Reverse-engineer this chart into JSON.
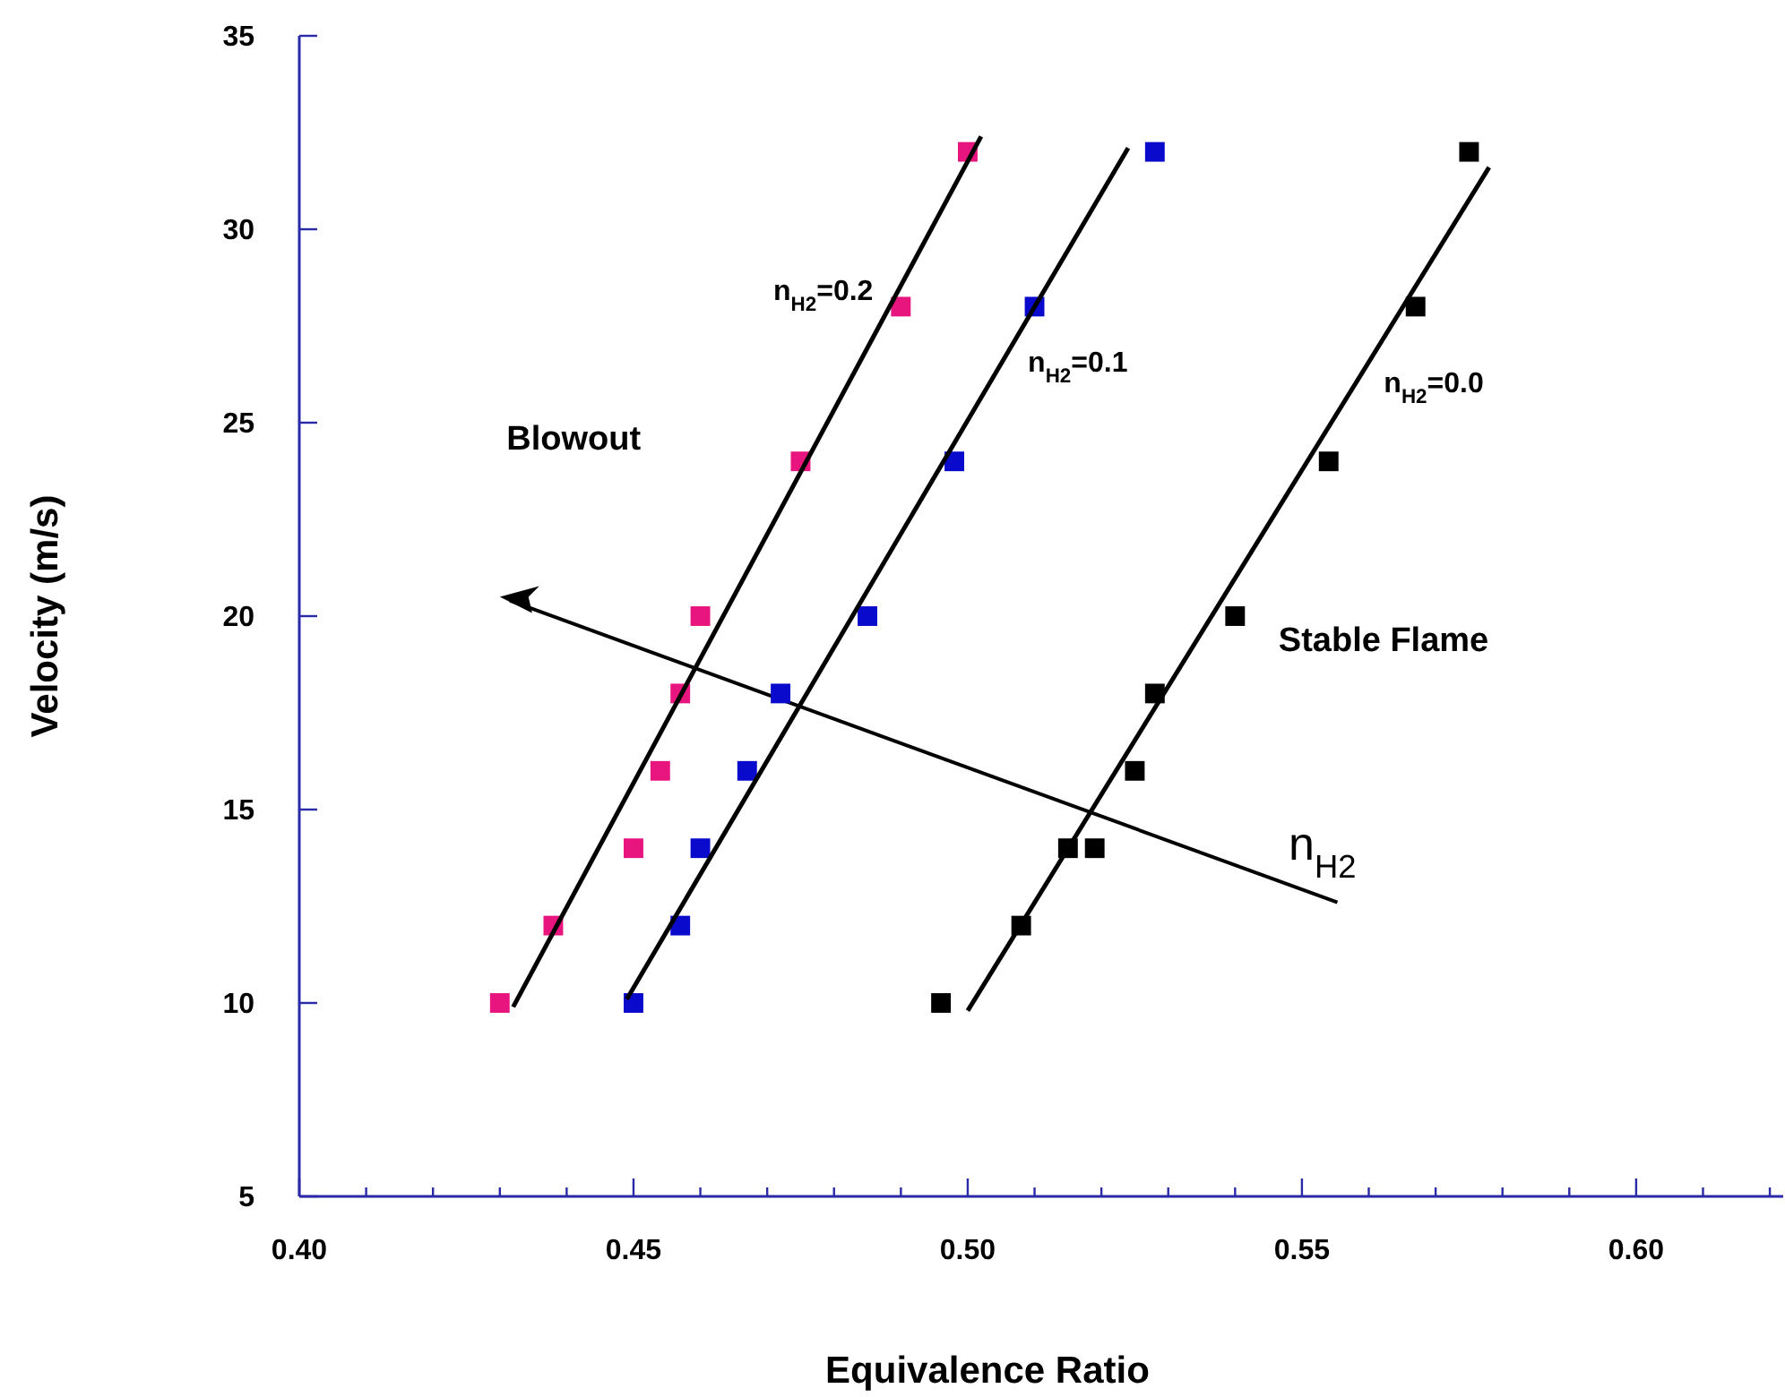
{
  "chart_data": {
    "type": "scatter",
    "xlabel": "Equivalence Ratio",
    "ylabel": "Velocity (m/s)",
    "xlim": [
      0.4,
      0.622
    ],
    "ylim": [
      5,
      35
    ],
    "xticks": [
      {
        "value": 0.4,
        "label": "0.40"
      },
      {
        "value": 0.41,
        "label": null
      },
      {
        "value": 0.42,
        "label": null
      },
      {
        "value": 0.43,
        "label": null
      },
      {
        "value": 0.44,
        "label": null
      },
      {
        "value": 0.45,
        "label": "0.45"
      },
      {
        "value": 0.46,
        "label": null
      },
      {
        "value": 0.47,
        "label": null
      },
      {
        "value": 0.48,
        "label": null
      },
      {
        "value": 0.49,
        "label": null
      },
      {
        "value": 0.5,
        "label": "0.50"
      },
      {
        "value": 0.51,
        "label": null
      },
      {
        "value": 0.52,
        "label": null
      },
      {
        "value": 0.53,
        "label": null
      },
      {
        "value": 0.54,
        "label": null
      },
      {
        "value": 0.55,
        "label": "0.55"
      },
      {
        "value": 0.56,
        "label": null
      },
      {
        "value": 0.57,
        "label": null
      },
      {
        "value": 0.58,
        "label": null
      },
      {
        "value": 0.59,
        "label": null
      },
      {
        "value": 0.6,
        "label": "0.60"
      },
      {
        "value": 0.61,
        "label": null
      },
      {
        "value": 0.62,
        "label": null
      }
    ],
    "yticks": [
      5,
      10,
      15,
      20,
      25,
      30,
      35
    ],
    "grid": false,
    "marker": "square",
    "series": [
      {
        "color": "#e8157f",
        "x": [
          0.43,
          0.438,
          0.45,
          0.454,
          0.457,
          0.46,
          0.475,
          0.49,
          0.5
        ],
        "values": [
          10,
          12,
          14,
          16,
          18,
          20,
          24,
          28,
          32
        ]
      },
      {
        "color": "#0a0acc",
        "x": [
          0.45,
          0.457,
          0.46,
          0.467,
          0.472,
          0.485,
          0.498,
          0.51,
          0.528
        ],
        "values": [
          10,
          12,
          14,
          16,
          18,
          20,
          24,
          28,
          32
        ]
      },
      {
        "color": "#000000",
        "x": [
          0.496,
          0.508,
          0.515,
          0.519,
          0.525,
          0.528,
          0.54,
          0.554,
          0.567,
          0.575
        ],
        "values": [
          10,
          12,
          14,
          14,
          16,
          18,
          20,
          24,
          28,
          32
        ]
      },
      {
        "type": "line",
        "marker": "none",
        "name": "n$_{H2}$=0.2",
        "color": "#000000",
        "x": [
          0.432,
          0.502
        ],
        "values": [
          9.9,
          32.4
        ]
      },
      {
        "type": "line",
        "marker": "none",
        "name": "n$_{H2}$=0.1",
        "color": "#000000",
        "x": [
          0.449,
          0.524
        ],
        "values": [
          10.1,
          32.1
        ]
      },
      {
        "type": "line",
        "marker": "none",
        "name": "n$_{H2}$=0.0",
        "color": "#000000",
        "x": [
          0.5,
          0.578
        ],
        "values": [
          9.8,
          31.6
        ]
      }
    ],
    "annotations": [
      "Blowout",
      "Stable Flame",
      "n$_{H2}$"
    ]
  }
}
